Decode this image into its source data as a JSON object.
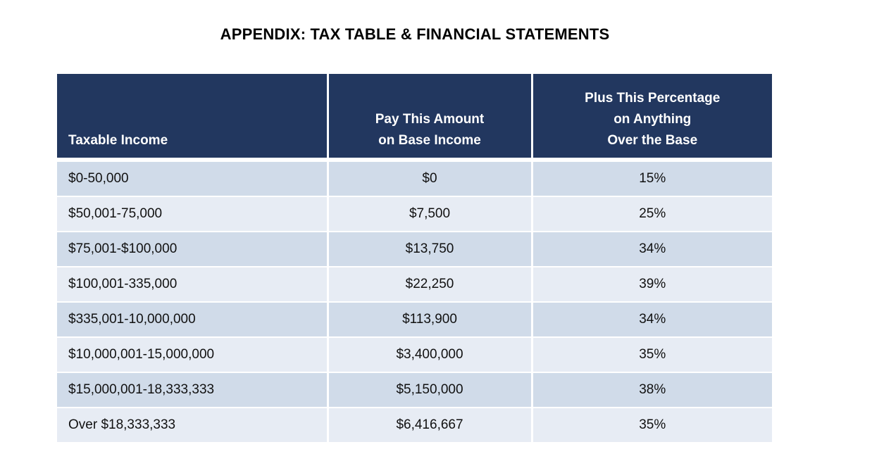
{
  "title": "APPENDIX: TAX TABLE & FINANCIAL STATEMENTS",
  "table": {
    "headers": [
      [
        "Taxable Income"
      ],
      [
        "Pay This Amount",
        "on Base Income"
      ],
      [
        "Plus This Percentage",
        "on Anything",
        "Over the Base"
      ]
    ],
    "rows": [
      [
        "$0-50,000",
        "$0",
        "15%"
      ],
      [
        "$50,001-75,000",
        "$7,500",
        "25%"
      ],
      [
        "$75,001-$100,000",
        "$13,750",
        "34%"
      ],
      [
        "$100,001-335,000",
        "$22,250",
        "39%"
      ],
      [
        "$335,001-10,000,000",
        "$113,900",
        "34%"
      ],
      [
        "$10,000,001-15,000,000",
        "$3,400,000",
        "35%"
      ],
      [
        "$15,000,001-18,333,333",
        "$5,150,000",
        "38%"
      ],
      [
        "Over $18,333,333",
        "$6,416,667",
        "35%"
      ]
    ]
  },
  "colors": {
    "header_bg": "#22375f",
    "row_odd_bg": "#d0dbe9",
    "row_even_bg": "#e7ecf4"
  }
}
